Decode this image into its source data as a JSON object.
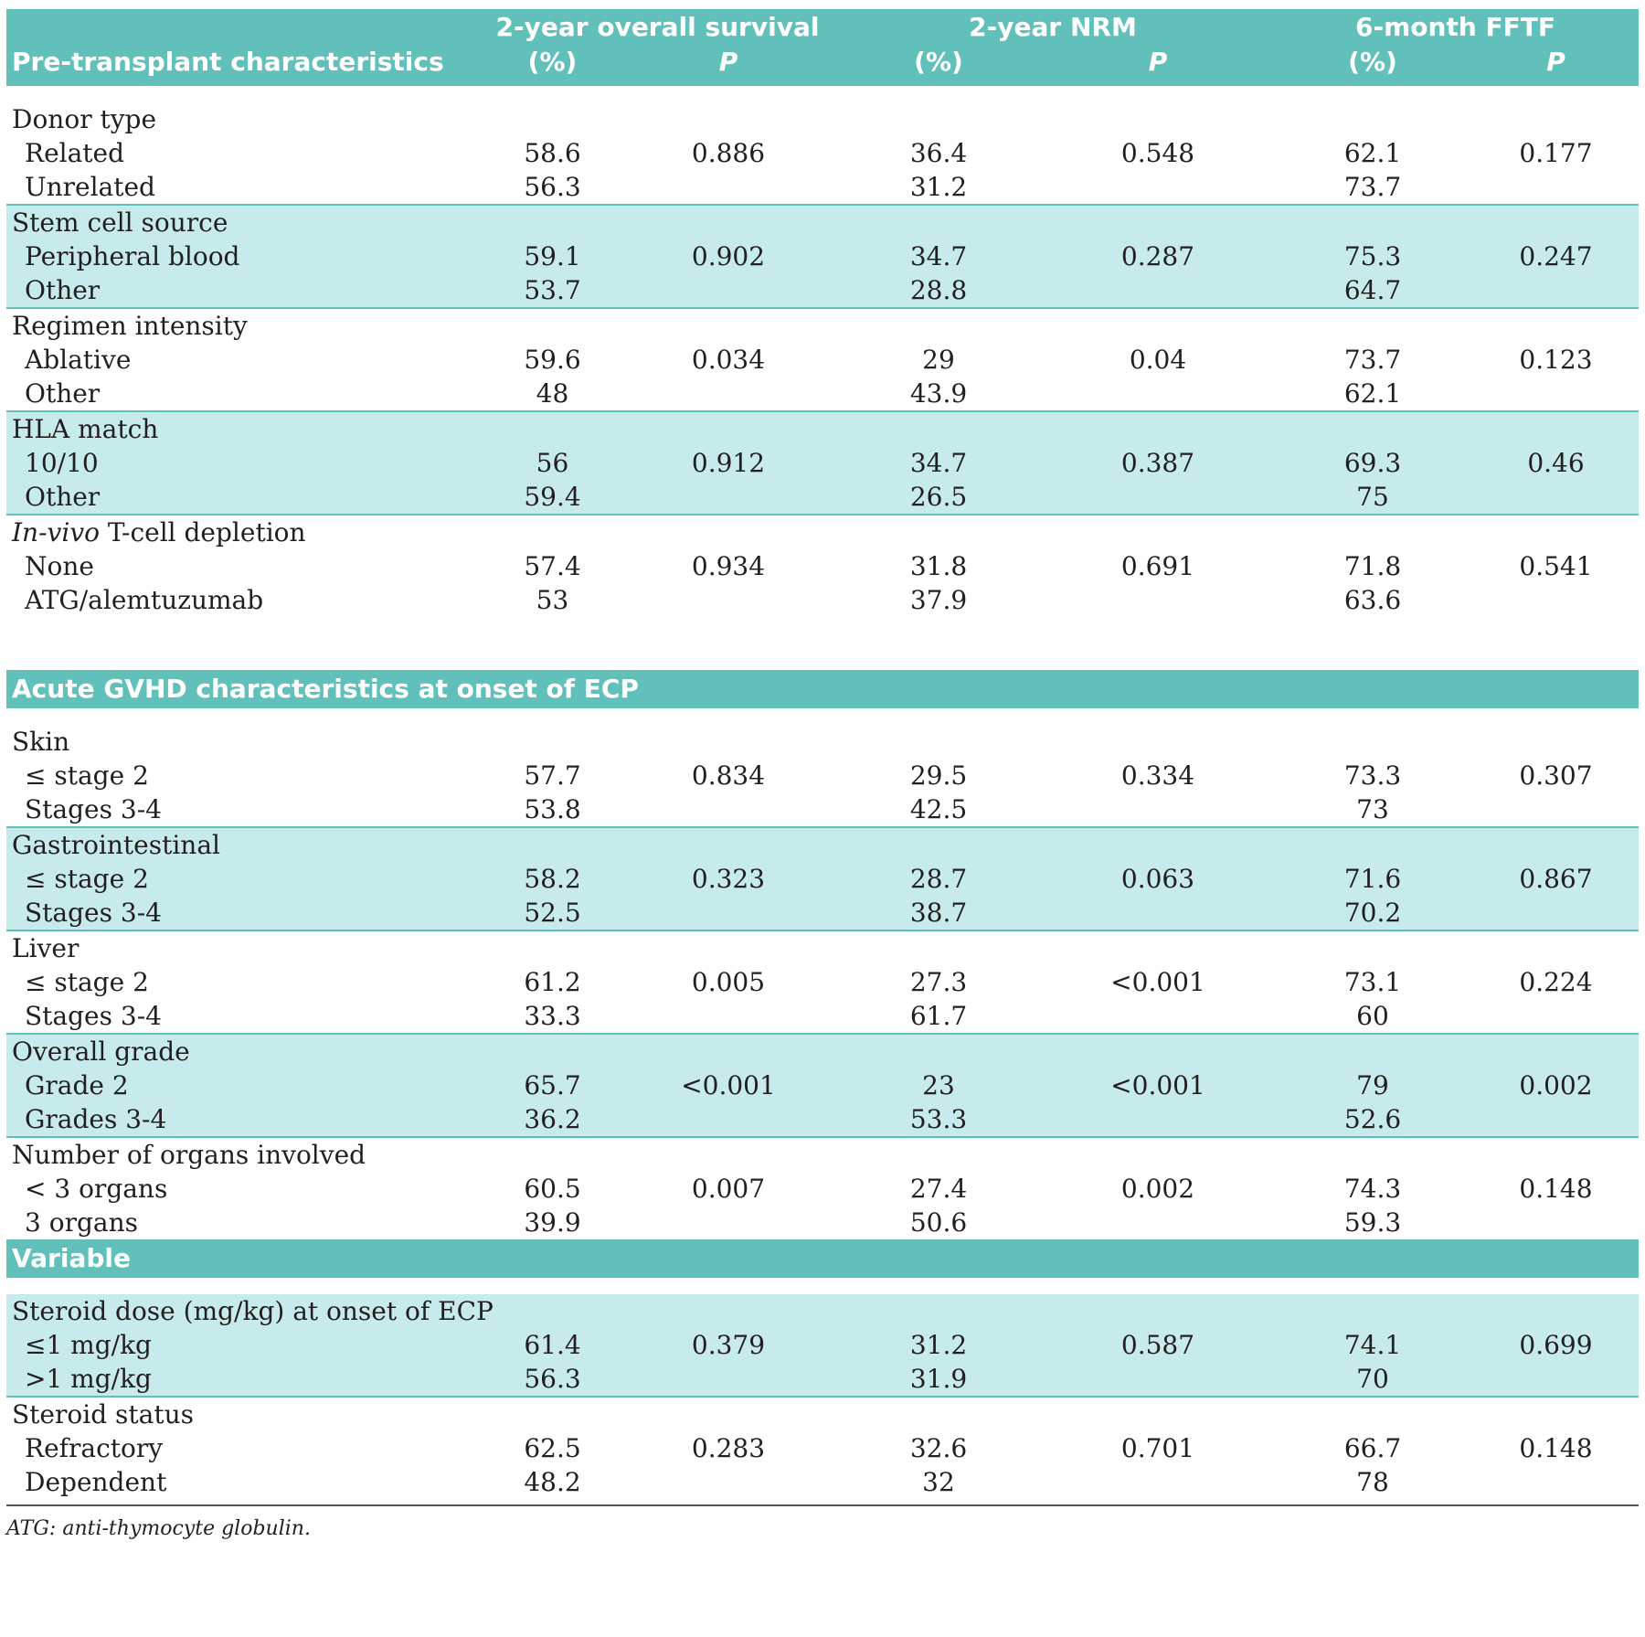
{
  "header": {
    "row_label": "Pre-transplant characteristics",
    "os_title": "2-year overall survival",
    "nrm_title": "2-year NRM",
    "fftf_title": "6-month FFTF",
    "pct": "(%)",
    "p": "P"
  },
  "groups": [
    {
      "label": "Donor type",
      "rows": [
        {
          "label": "Related",
          "os": "58.6",
          "os_p": "0.886",
          "nrm": "36.4",
          "nrm_p": "0.548",
          "fftf": "62.1",
          "fftf_p": "0.177"
        },
        {
          "label": "Unrelated",
          "os": "56.3",
          "os_p": "",
          "nrm": "31.2",
          "nrm_p": "",
          "fftf": "73.7",
          "fftf_p": ""
        }
      ]
    },
    {
      "label": "Stem cell source",
      "rows": [
        {
          "label": "Peripheral blood",
          "os": "59.1",
          "os_p": "0.902",
          "nrm": "34.7",
          "nrm_p": "0.287",
          "fftf": "75.3",
          "fftf_p": "0.247"
        },
        {
          "label": "Other",
          "os": "53.7",
          "os_p": "",
          "nrm": "28.8",
          "nrm_p": "",
          "fftf": "64.7",
          "fftf_p": ""
        }
      ]
    },
    {
      "label": "Regimen intensity",
      "rows": [
        {
          "label": "Ablative",
          "os": "59.6",
          "os_p": "0.034",
          "nrm": "29",
          "nrm_p": "0.04",
          "fftf": "73.7",
          "fftf_p": "0.123"
        },
        {
          "label": "Other",
          "os": "48",
          "os_p": "",
          "nrm": "43.9",
          "nrm_p": "",
          "fftf": "62.1",
          "fftf_p": ""
        }
      ]
    },
    {
      "label": "HLA match",
      "rows": [
        {
          "label": "10/10",
          "os": "56",
          "os_p": "0.912",
          "nrm": "34.7",
          "nrm_p": "0.387",
          "fftf": "69.3",
          "fftf_p": "0.46"
        },
        {
          "label": "Other",
          "os": "59.4",
          "os_p": "",
          "nrm": "26.5",
          "nrm_p": "",
          "fftf": "75",
          "fftf_p": ""
        }
      ]
    },
    {
      "label_italic": "In-vivo",
      "label": " T-cell depletion",
      "rows": [
        {
          "label": "None",
          "os": "57.4",
          "os_p": "0.934",
          "nrm": "31.8",
          "nrm_p": "0.691",
          "fftf": "71.8",
          "fftf_p": "0.541"
        },
        {
          "label": "ATG/alemtuzumab",
          "os": "53",
          "os_p": "",
          "nrm": "37.9",
          "nrm_p": "",
          "fftf": "63.6",
          "fftf_p": ""
        }
      ]
    }
  ],
  "section2": {
    "title": "Acute GVHD characteristics at onset of ECP"
  },
  "groups2": [
    {
      "label": "Skin",
      "rows": [
        {
          "label": "≤ stage 2",
          "os": "57.7",
          "os_p": "0.834",
          "nrm": "29.5",
          "nrm_p": "0.334",
          "fftf": "73.3",
          "fftf_p": "0.307"
        },
        {
          "label": "Stages 3-4",
          "os": "53.8",
          "os_p": "",
          "nrm": "42.5",
          "nrm_p": "",
          "fftf": "73",
          "fftf_p": ""
        }
      ]
    },
    {
      "label": "Gastrointestinal",
      "rows": [
        {
          "label": "≤ stage 2",
          "os": "58.2",
          "os_p": "0.323",
          "nrm": "28.7",
          "nrm_p": "0.063",
          "fftf": "71.6",
          "fftf_p": "0.867"
        },
        {
          "label": "Stages 3-4",
          "os": "52.5",
          "os_p": "",
          "nrm": "38.7",
          "nrm_p": "",
          "fftf": "70.2",
          "fftf_p": ""
        }
      ]
    },
    {
      "label": "Liver",
      "rows": [
        {
          "label": "≤ stage 2",
          "os": "61.2",
          "os_p": "0.005",
          "nrm": "27.3",
          "nrm_p": "<0.001",
          "fftf": "73.1",
          "fftf_p": "0.224"
        },
        {
          "label": "Stages 3-4",
          "os": "33.3",
          "os_p": "",
          "nrm": "61.7",
          "nrm_p": "",
          "fftf": "60",
          "fftf_p": ""
        }
      ]
    },
    {
      "label": "Overall grade",
      "rows": [
        {
          "label": "Grade 2",
          "os": "65.7",
          "os_p": "<0.001",
          "nrm": "23",
          "nrm_p": "<0.001",
          "fftf": "79",
          "fftf_p": "0.002"
        },
        {
          "label": "Grades 3-4",
          "os": "36.2",
          "os_p": "",
          "nrm": "53.3",
          "nrm_p": "",
          "fftf": "52.6",
          "fftf_p": ""
        }
      ]
    },
    {
      "label": "Number of organs involved",
      "rows": [
        {
          "label": "< 3 organs",
          "os": "60.5",
          "os_p": "0.007",
          "nrm": "27.4",
          "nrm_p": "0.002",
          "fftf": "74.3",
          "fftf_p": "0.148"
        },
        {
          "label": "3 organs",
          "os": "39.9",
          "os_p": "",
          "nrm": "50.6",
          "nrm_p": "",
          "fftf": "59.3",
          "fftf_p": ""
        }
      ]
    }
  ],
  "section3": {
    "title": "Variable"
  },
  "groups3": [
    {
      "label": "Steroid dose (mg/kg) at onset of ECP",
      "rows": [
        {
          "label": "≤1 mg/kg",
          "os": "61.4",
          "os_p": "0.379",
          "nrm": "31.2",
          "nrm_p": "0.587",
          "fftf": "74.1",
          "fftf_p": "0.699"
        },
        {
          "label": ">1 mg/kg",
          "os": "56.3",
          "os_p": "",
          "nrm": "31.9",
          "nrm_p": "",
          "fftf": "70",
          "fftf_p": ""
        }
      ]
    },
    {
      "label": "Steroid status",
      "rows": [
        {
          "label": "Refractory",
          "os": "62.5",
          "os_p": "0.283",
          "nrm": "32.6",
          "nrm_p": "0.701",
          "fftf": "66.7",
          "fftf_p": "0.148"
        },
        {
          "label": "Dependent",
          "os": "48.2",
          "os_p": "",
          "nrm": "32",
          "nrm_p": "",
          "fftf": "78",
          "fftf_p": ""
        }
      ]
    }
  ],
  "footnote": "ATG: anti-thymocyte globulin.",
  "colors": {
    "header_band": "#62c0bb",
    "shade": "#c7eaea",
    "text": "#231f20"
  }
}
